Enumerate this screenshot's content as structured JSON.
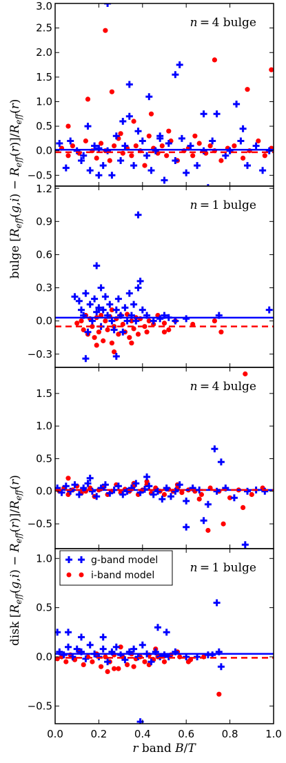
{
  "chart_data": {
    "type": "scatter",
    "xlabel": "r band B/T",
    "xlim": [
      0.0,
      1.0
    ],
    "x_ticks": [
      "0.0",
      "0.2",
      "0.4",
      "0.6",
      "0.8",
      "1.0"
    ],
    "ylabel_top": "bulge [R_eff(g,i) − R_eff(r)] / R_eff(r)",
    "ylabel_bottom": "disk [R_eff(g,i) − R_eff(r)] / R_eff(r)",
    "legend": {
      "placement": "top-left of bottom panel",
      "entries": [
        {
          "label": "g-band model",
          "marker": "plus",
          "color": "#0000ff"
        },
        {
          "label": "i-band model",
          "marker": "circle",
          "color": "#ff0000"
        }
      ]
    },
    "colors": {
      "g_band": "#0000ff",
      "i_band": "#ff0000"
    },
    "panels": [
      {
        "label": "n = 4 bulge",
        "component": "bulge",
        "ylim": [
          -0.72,
          3.0
        ],
        "y_ticks": [
          -0.5,
          0.0,
          0.5,
          1.0,
          1.5,
          2.0,
          2.5,
          3.0
        ],
        "y_tick_labels": [
          "−0.5",
          "0.0",
          "0.5",
          "1.0",
          "1.5",
          "2.0",
          "2.5",
          "3.0"
        ],
        "g_line": 0.02,
        "i_line": -0.03,
        "series": [
          {
            "name": "g-band model",
            "x": [
              0.02,
              0.05,
              0.07,
              0.1,
              0.13,
              0.16,
              0.18,
              0.2,
              0.22,
              0.24,
              0.26,
              0.28,
              0.3,
              0.32,
              0.34,
              0.36,
              0.38,
              0.4,
              0.42,
              0.44,
              0.46,
              0.48,
              0.5,
              0.52,
              0.55,
              0.58,
              0.6,
              0.62,
              0.65,
              0.68,
              0.7,
              0.72,
              0.74,
              0.78,
              0.8,
              0.85,
              0.88,
              0.92,
              0.95,
              0.98,
              0.24,
              0.34,
              0.43,
              0.55,
              0.57,
              0.68,
              0.83,
              0.86,
              0.15,
              0.12,
              0.2,
              0.31,
              0.48
            ],
            "y": [
              0.15,
              -0.35,
              0.2,
              0.0,
              -0.1,
              -0.4,
              0.1,
              0.05,
              -0.3,
              0.0,
              -0.5,
              0.3,
              -0.2,
              0.1,
              0.7,
              -0.3,
              0.4,
              0.2,
              -0.1,
              -0.4,
              0.0,
              0.3,
              -0.6,
              0.15,
              -0.2,
              0.25,
              -0.45,
              0.1,
              -0.3,
              0.0,
              -0.75,
              0.2,
              0.75,
              -0.1,
              0.0,
              0.2,
              -0.3,
              0.1,
              -0.4,
              0.0,
              3.0,
              1.35,
              1.1,
              1.55,
              1.75,
              0.75,
              0.95,
              0.45,
              0.5,
              -0.2,
              -0.5,
              0.6,
              0.25
            ]
          },
          {
            "name": "i-band model",
            "x": [
              0.03,
              0.06,
              0.08,
              0.11,
              0.14,
              0.17,
              0.19,
              0.21,
              0.23,
              0.25,
              0.27,
              0.29,
              0.31,
              0.33,
              0.35,
              0.37,
              0.39,
              0.41,
              0.43,
              0.45,
              0.47,
              0.49,
              0.51,
              0.53,
              0.56,
              0.59,
              0.61,
              0.63,
              0.66,
              0.69,
              0.71,
              0.73,
              0.76,
              0.79,
              0.82,
              0.86,
              0.89,
              0.93,
              0.96,
              0.99,
              0.06,
              0.23,
              0.26,
              0.36,
              0.44,
              0.73,
              0.88,
              0.99,
              0.15,
              0.3,
              0.52,
              0.64
            ],
            "y": [
              0.05,
              -0.1,
              0.1,
              -0.05,
              0.2,
              0.0,
              -0.15,
              0.15,
              0.0,
              -0.2,
              0.1,
              0.25,
              -0.05,
              0.05,
              -0.1,
              0.1,
              0.0,
              -0.3,
              0.3,
              0.05,
              -0.05,
              0.1,
              -0.1,
              0.2,
              -0.2,
              0.0,
              0.05,
              -0.1,
              0.15,
              -0.05,
              0.1,
              0.0,
              -0.2,
              0.05,
              0.1,
              -0.15,
              0.0,
              0.2,
              -0.1,
              0.05,
              0.5,
              2.45,
              1.2,
              0.6,
              0.75,
              1.85,
              1.25,
              1.65,
              1.05,
              0.35,
              0.4,
              0.3
            ]
          }
        ]
      },
      {
        "label": "n = 1 bulge",
        "component": "bulge",
        "ylim": [
          -0.42,
          1.22
        ],
        "y_ticks": [
          -0.3,
          0.0,
          0.3,
          0.6,
          0.9,
          1.2
        ],
        "y_tick_labels": [
          "−0.3",
          "0.0",
          "0.3",
          "0.6",
          "0.9",
          "1.2"
        ],
        "g_line": 0.03,
        "i_line": -0.05,
        "series": [
          {
            "name": "g-band model",
            "x": [
              0.09,
              0.11,
              0.12,
              0.13,
              0.14,
              0.15,
              0.16,
              0.17,
              0.18,
              0.19,
              0.2,
              0.21,
              0.22,
              0.23,
              0.24,
              0.25,
              0.26,
              0.27,
              0.28,
              0.29,
              0.3,
              0.31,
              0.32,
              0.33,
              0.34,
              0.35,
              0.36,
              0.37,
              0.38,
              0.4,
              0.42,
              0.45,
              0.48,
              0.5,
              0.52,
              0.55,
              0.6,
              0.75,
              0.98,
              0.19,
              0.38,
              0.39,
              0.14,
              0.28,
              0.21
            ],
            "y": [
              0.22,
              0.18,
              0.1,
              0.05,
              0.25,
              -0.1,
              0.15,
              0.0,
              0.2,
              0.08,
              0.12,
              -0.05,
              0.1,
              0.22,
              0.05,
              0.15,
              0.0,
              -0.08,
              0.1,
              0.2,
              0.05,
              -0.1,
              0.12,
              0.0,
              0.25,
              0.05,
              0.15,
              0.0,
              0.3,
              0.1,
              0.05,
              0.0,
              0.02,
              0.05,
              0.03,
              0.0,
              0.02,
              0.05,
              0.1,
              0.5,
              0.96,
              0.36,
              -0.34,
              -0.32,
              0.3
            ]
          },
          {
            "name": "i-band model",
            "x": [
              0.1,
              0.12,
              0.13,
              0.14,
              0.15,
              0.16,
              0.17,
              0.18,
              0.19,
              0.2,
              0.21,
              0.22,
              0.23,
              0.24,
              0.25,
              0.26,
              0.27,
              0.28,
              0.29,
              0.3,
              0.31,
              0.32,
              0.33,
              0.34,
              0.35,
              0.36,
              0.37,
              0.38,
              0.39,
              0.41,
              0.43,
              0.45,
              0.47,
              0.5,
              0.52,
              0.55,
              0.63,
              0.73,
              0.76,
              0.19,
              0.27,
              0.35,
              0.42,
              0.5,
              0.26
            ],
            "y": [
              -0.02,
              0.0,
              -0.08,
              0.05,
              -0.12,
              0.02,
              -0.05,
              -0.15,
              0.03,
              -0.1,
              0.05,
              -0.18,
              0.0,
              -0.08,
              0.04,
              -0.2,
              -0.05,
              0.02,
              -0.12,
              0.05,
              -0.03,
              -0.1,
              0.06,
              -0.15,
              0.0,
              -0.07,
              0.03,
              -0.12,
              0.02,
              -0.05,
              0.0,
              -0.03,
              0.05,
              -0.02,
              -0.08,
              0.0,
              -0.03,
              0.0,
              -0.1,
              -0.22,
              -0.28,
              -0.2,
              -0.1,
              -0.1,
              0.1
            ]
          }
        ]
      },
      {
        "label": "n = 4 bulge",
        "component": "disk",
        "ylim": [
          -0.88,
          1.9
        ],
        "y_ticks": [
          -0.5,
          0.0,
          0.5,
          1.0,
          1.5
        ],
        "y_tick_labels": [
          "−0.5",
          "0.0",
          "0.5",
          "1.0",
          "1.5"
        ],
        "g_line": 0.02,
        "i_line": 0.02,
        "series": [
          {
            "name": "g-band model",
            "x": [
              0.01,
              0.03,
              0.05,
              0.07,
              0.09,
              0.11,
              0.13,
              0.15,
              0.17,
              0.19,
              0.21,
              0.23,
              0.25,
              0.27,
              0.29,
              0.31,
              0.33,
              0.35,
              0.37,
              0.39,
              0.41,
              0.43,
              0.45,
              0.47,
              0.49,
              0.51,
              0.53,
              0.55,
              0.57,
              0.6,
              0.63,
              0.66,
              0.7,
              0.74,
              0.78,
              0.82,
              0.88,
              0.92,
              0.96,
              0.73,
              0.76,
              0.6,
              0.68,
              0.87,
              0.16,
              0.42
            ],
            "y": [
              0.05,
              -0.02,
              0.08,
              0.0,
              0.1,
              -0.05,
              0.05,
              0.12,
              0.0,
              -0.08,
              0.05,
              0.1,
              -0.03,
              0.02,
              0.08,
              -0.05,
              0.0,
              0.05,
              0.12,
              -0.02,
              0.03,
              0.08,
              -0.05,
              0.0,
              -0.12,
              0.05,
              -0.08,
              0.0,
              0.1,
              -0.15,
              0.05,
              0.02,
              -0.2,
              0.0,
              0.05,
              -0.1,
              0.0,
              0.02,
              0.0,
              0.65,
              0.45,
              -0.55,
              -0.45,
              -0.82,
              0.2,
              0.22
            ]
          },
          {
            "name": "i-band model",
            "x": [
              0.02,
              0.04,
              0.06,
              0.08,
              0.1,
              0.12,
              0.14,
              0.16,
              0.18,
              0.2,
              0.22,
              0.24,
              0.26,
              0.28,
              0.3,
              0.32,
              0.34,
              0.36,
              0.38,
              0.4,
              0.42,
              0.44,
              0.46,
              0.48,
              0.5,
              0.52,
              0.54,
              0.56,
              0.58,
              0.61,
              0.64,
              0.67,
              0.71,
              0.75,
              0.8,
              0.84,
              0.9,
              0.95,
              0.87,
              0.7,
              0.77,
              0.42,
              0.36,
              0.56,
              0.06,
              0.86,
              0.66
            ],
            "y": [
              0.0,
              0.05,
              -0.05,
              0.02,
              0.08,
              -0.03,
              0.0,
              0.05,
              -0.08,
              0.02,
              0.05,
              -0.05,
              0.0,
              0.1,
              -0.02,
              0.03,
              0.0,
              0.08,
              -0.05,
              0.02,
              0.1,
              -0.03,
              0.05,
              0.0,
              -0.05,
              0.03,
              0.0,
              0.05,
              -0.02,
              0.02,
              0.0,
              -0.05,
              0.05,
              0.0,
              -0.1,
              0.02,
              -0.05,
              0.05,
              1.8,
              -0.6,
              -0.5,
              0.15,
              0.12,
              0.1,
              0.2,
              -0.25,
              -0.12
            ]
          }
        ]
      },
      {
        "label": "n = 1 bulge",
        "component": "disk",
        "ylim": [
          -0.68,
          1.1
        ],
        "y_ticks": [
          -0.5,
          0.0,
          0.5,
          1.0
        ],
        "y_tick_labels": [
          "−0.5",
          "0.0",
          "0.5",
          "1.0"
        ],
        "g_line": 0.03,
        "i_line": -0.01,
        "series": [
          {
            "name": "g-band model",
            "x": [
              0.02,
              0.04,
              0.06,
              0.08,
              0.1,
              0.12,
              0.14,
              0.16,
              0.18,
              0.2,
              0.22,
              0.24,
              0.26,
              0.28,
              0.3,
              0.32,
              0.34,
              0.36,
              0.38,
              0.4,
              0.42,
              0.44,
              0.46,
              0.48,
              0.5,
              0.52,
              0.55,
              0.6,
              0.65,
              0.7,
              0.74,
              0.76,
              0.01,
              0.06,
              0.12,
              0.47,
              0.22,
              0.51,
              0.75,
              0.39,
              0.72
            ],
            "y": [
              0.05,
              0.02,
              0.1,
              0.0,
              0.08,
              0.05,
              -0.02,
              0.12,
              0.03,
              0.0,
              0.08,
              -0.05,
              0.05,
              0.1,
              0.02,
              -0.03,
              0.05,
              0.08,
              0.0,
              0.12,
              0.03,
              -0.05,
              0.05,
              0.0,
              0.02,
              0.0,
              0.05,
              0.0,
              0.0,
              0.02,
              0.55,
              -0.1,
              0.25,
              0.25,
              0.2,
              0.3,
              0.2,
              0.25,
              0.05,
              -0.66,
              0.02
            ]
          },
          {
            "name": "i-band model",
            "x": [
              0.01,
              0.03,
              0.05,
              0.07,
              0.09,
              0.11,
              0.13,
              0.15,
              0.17,
              0.19,
              0.21,
              0.23,
              0.25,
              0.27,
              0.29,
              0.31,
              0.33,
              0.35,
              0.37,
              0.39,
              0.41,
              0.43,
              0.45,
              0.47,
              0.5,
              0.53,
              0.57,
              0.62,
              0.68,
              0.75,
              0.24,
              0.27,
              0.3,
              0.36,
              0.43,
              0.46,
              0.56,
              0.61
            ],
            "y": [
              -0.02,
              0.0,
              -0.05,
              0.02,
              -0.03,
              0.05,
              -0.08,
              0.0,
              -0.05,
              0.03,
              -0.1,
              0.0,
              -0.05,
              0.02,
              -0.12,
              0.0,
              -0.08,
              0.03,
              -0.02,
              0.0,
              -0.05,
              0.02,
              -0.03,
              0.0,
              -0.05,
              0.02,
              0.0,
              -0.03,
              0.0,
              -0.38,
              -0.15,
              -0.12,
              0.1,
              -0.1,
              -0.08,
              0.08,
              0.05,
              -0.05
            ]
          }
        ]
      }
    ]
  }
}
